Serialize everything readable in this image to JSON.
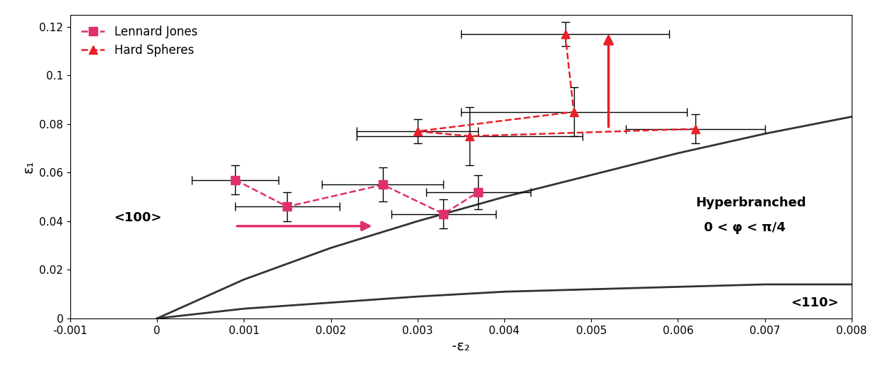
{
  "chart_data": {
    "type": "scatter",
    "x_label": "-ε₂",
    "y_label": "ε₁",
    "xlim": [
      -0.001,
      0.008
    ],
    "ylim": [
      0,
      0.125
    ],
    "xticks": [
      -0.001,
      0,
      0.001,
      0.002,
      0.003,
      0.004,
      0.005,
      0.006,
      0.007,
      0.008
    ],
    "yticks": [
      0,
      0.02,
      0.04,
      0.06,
      0.08,
      0.1,
      0.12
    ],
    "grid": false,
    "legend": "upper left",
    "series": [
      {
        "name": "Lennard Jones",
        "color": "#e0306a",
        "marker": "square",
        "line_style": "dashed",
        "x": [
          0.0009,
          0.0015,
          0.0026,
          0.0033,
          0.0037
        ],
        "values": [
          0.057,
          0.046,
          0.055,
          0.043,
          0.052
        ],
        "xerr": [
          0.0005,
          0.0006,
          0.0007,
          0.0006,
          0.0006
        ],
        "yerr": [
          0.006,
          0.006,
          0.007,
          0.006,
          0.007
        ]
      },
      {
        "name": "Hard Spheres",
        "color": "#e8202a",
        "marker": "triangle",
        "line_style": "dashed",
        "x": [
          0.0047,
          0.0048,
          0.003,
          0.0036,
          0.0062
        ],
        "values": [
          0.117,
          0.085,
          0.077,
          0.075,
          0.078
        ],
        "xerr": [
          0.0012,
          0.0013,
          0.0007,
          0.0013,
          0.0008
        ],
        "yerr": [
          0.005,
          0.01,
          0.005,
          0.012,
          0.006
        ]
      }
    ],
    "boundaries": [
      {
        "color": "#333333",
        "x": [
          0,
          0.001,
          0.002,
          0.003,
          0.004,
          0.005,
          0.006,
          0.007,
          0.008
        ],
        "values": [
          0,
          0.016,
          0.029,
          0.04,
          0.05,
          0.059,
          0.068,
          0.076,
          0.083
        ]
      },
      {
        "color": "#333333",
        "x": [
          0,
          0.001,
          0.002,
          0.003,
          0.004,
          0.005,
          0.006,
          0.007,
          0.008
        ],
        "values": [
          0,
          0.004,
          0.0065,
          0.009,
          0.011,
          0.012,
          0.013,
          0.014,
          0.014
        ]
      }
    ],
    "annotations": [
      {
        "text": "Hyperbranched",
        "x": 0.0062,
        "y": 0.046
      },
      {
        "text": "0 < φ < π/4",
        "x": 0.0063,
        "y": 0.036
      },
      {
        "text": "<100>",
        "x": -0.0005,
        "y": 0.04
      },
      {
        "text": "<110>",
        "x": 0.0073,
        "y": 0.005
      }
    ],
    "arrows": [
      {
        "from": [
          0.0009,
          0.038
        ],
        "to": [
          0.0025,
          0.038
        ],
        "color": "#e0306a"
      },
      {
        "from": [
          0.0052,
          0.078
        ],
        "to": [
          0.0052,
          0.118
        ],
        "color": "#e8202a"
      }
    ]
  }
}
